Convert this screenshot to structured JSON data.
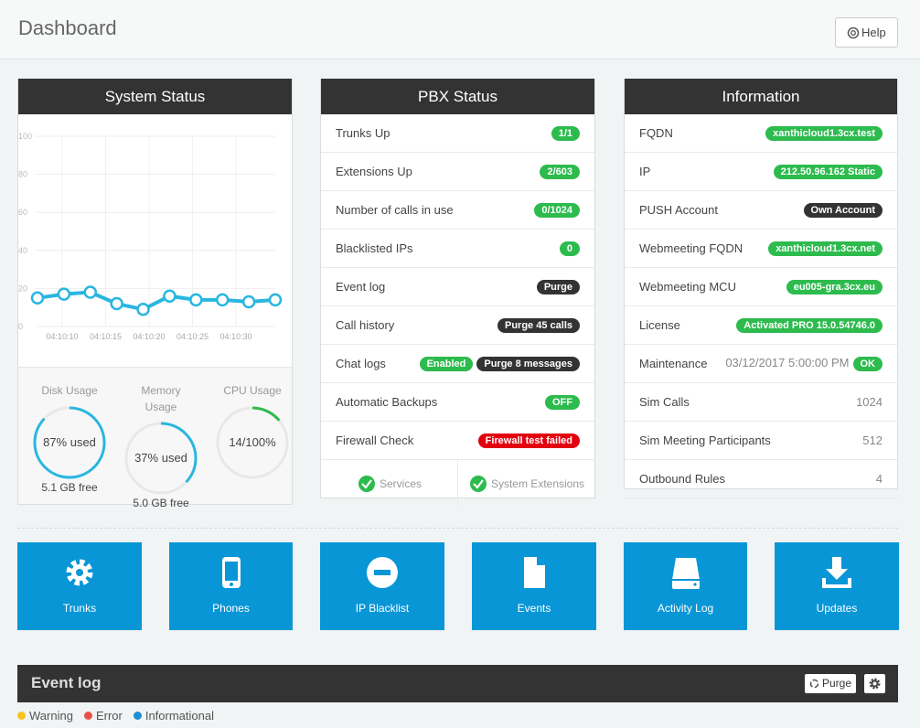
{
  "header": {
    "title": "Dashboard",
    "help": "Help"
  },
  "system_status": {
    "title": "System Status",
    "chart": {
      "type": "line",
      "values": [
        15,
        17,
        18,
        12,
        9,
        16,
        14,
        14,
        13,
        14
      ],
      "color": "#29b6e0",
      "ylim": [
        0,
        100
      ],
      "yticks": [
        0,
        20,
        40,
        60,
        80,
        100
      ],
      "xtick_labels": [
        "04:10:10",
        "04:10:15",
        "04:10:20",
        "04:10:25",
        "04:10:30"
      ],
      "grid": true
    },
    "gauges": [
      {
        "title": "Disk Usage",
        "percent": 87,
        "label": "87% used",
        "free": "5.1 GB free",
        "color": "#29b6e0"
      },
      {
        "title": "Memory Usage",
        "percent": 37,
        "label": "37% used",
        "free": "5.0 GB free",
        "color": "#29b6e0"
      },
      {
        "title": "CPU Usage",
        "percent": 14,
        "label": "14/100%",
        "color": "#2dbb4e"
      }
    ]
  },
  "pbx_status": {
    "title": "PBX Status",
    "rows": [
      {
        "label": "Trunks Up",
        "badges": [
          {
            "text": "1/1",
            "color": "#2dbb4e"
          }
        ]
      },
      {
        "label": "Extensions Up",
        "badges": [
          {
            "text": "2/603",
            "color": "#2dbb4e"
          }
        ]
      },
      {
        "label": "Number of calls in use",
        "badges": [
          {
            "text": "0/1024",
            "color": "#2dbb4e"
          }
        ]
      },
      {
        "label": "Blacklisted IPs",
        "badges": [
          {
            "text": "0",
            "color": "#2dbb4e"
          }
        ]
      },
      {
        "label": "Event log",
        "badges": [
          {
            "text": "Purge",
            "color": "#333333"
          }
        ]
      },
      {
        "label": "Call history",
        "badges": [
          {
            "text": "Purge 45 calls",
            "color": "#333333"
          }
        ]
      },
      {
        "label": "Chat logs",
        "badges": [
          {
            "text": "Enabled",
            "color": "#2dbb4e"
          },
          {
            "text": "Purge 8 messages",
            "color": "#333333"
          }
        ]
      },
      {
        "label": "Automatic Backups",
        "badges": [
          {
            "text": "OFF",
            "color": "#2dbb4e"
          }
        ]
      },
      {
        "label": "Firewall Check",
        "badges": [
          {
            "text": "Firewall test failed",
            "color": "#e3000f"
          }
        ]
      }
    ],
    "footer": [
      "Services",
      "System Extensions"
    ]
  },
  "information": {
    "title": "Information",
    "rows": [
      {
        "label": "FQDN",
        "badge": "xanthicloud1.3cx.test",
        "color": "#2dbb4e"
      },
      {
        "label": "IP",
        "badge": "212.50.96.162 Static",
        "color": "#2dbb4e"
      },
      {
        "label": "PUSH Account",
        "badge": "Own Account",
        "color": "#333333"
      },
      {
        "label": "Webmeeting FQDN",
        "badge": "xanthicloud1.3cx.net",
        "color": "#2dbb4e"
      },
      {
        "label": "Webmeeting MCU",
        "badge": "eu005-gra.3cx.eu",
        "color": "#2dbb4e"
      },
      {
        "label": "License",
        "badge": "Activated PRO 15.0.54746.0",
        "color": "#2dbb4e"
      },
      {
        "label": "Maintenance",
        "text": "03/12/2017 5:00:00 PM",
        "badge": "OK",
        "color": "#2dbb4e"
      },
      {
        "label": "Sim Calls",
        "text": 1024
      },
      {
        "label": "Sim Meeting Participants",
        "text": 512
      },
      {
        "label": "Outbound Rules",
        "text": 4
      }
    ]
  },
  "tiles": [
    "Trunks",
    "Phones",
    "IP Blacklist",
    "Events",
    "Activity Log",
    "Updates"
  ],
  "event_log": {
    "title": "Event log",
    "purge": "Purge",
    "legend": [
      {
        "name": "Warning",
        "color": "#f7c51e"
      },
      {
        "name": "Error",
        "color": "#e8514a"
      },
      {
        "name": "Informational",
        "color": "#1a90d2"
      }
    ]
  }
}
